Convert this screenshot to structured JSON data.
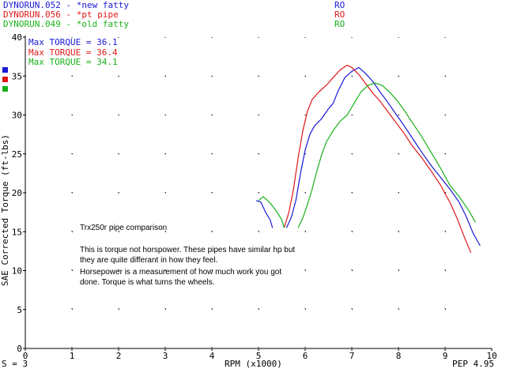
{
  "header": {
    "runs": [
      {
        "label": "DYNORUN.052 - *new fatty",
        "flag": "RO",
        "color": "#1a1ad6"
      },
      {
        "label": "DYNORUN.056 - *pt pipe",
        "flag": "RO",
        "color": "#e01818"
      },
      {
        "label": "DYNORUN.049 - *old fatty",
        "flag": "RO",
        "color": "#18b018"
      }
    ]
  },
  "max_torque": [
    {
      "text": "Max TORQUE = 36.1",
      "color": "#1a1ad6"
    },
    {
      "text": "Max TORQUE = 36.4",
      "color": "#e01818"
    },
    {
      "text": "Max TORQUE = 34.1",
      "color": "#18b018"
    }
  ],
  "note": {
    "title": "Trx250r pipe comparison",
    "line1": "This is torque not horspower. These pipes have similar hp but",
    "line2": "they are quite differant in how they feel.",
    "line3": "Horsepower is a measurement of how much work you got",
    "line4": "done. Torque is what turns the wheels."
  },
  "footer": {
    "left": "S = 3",
    "center": "RPM (x1000)",
    "right": "PEP 4.95"
  },
  "chart_data": {
    "type": "line",
    "xlabel": "RPM (x1000)",
    "ylabel": "SAE Corrected Torque (ft-lbs)",
    "xlim": [
      0,
      10
    ],
    "ylim": [
      0,
      40
    ],
    "x_ticks": [
      "0",
      "1",
      "2",
      "3",
      "4",
      "5",
      "6",
      "7",
      "8",
      "9",
      "10"
    ],
    "y_ticks": [
      "0",
      "5",
      "10",
      "15",
      "20",
      "25",
      "30",
      "35",
      "40"
    ],
    "grid": "dotted",
    "series": [
      {
        "name": "DYNORUN.052 - *new fatty",
        "color": "#1a1ad6",
        "segments": [
          [
            [
              4.95,
              19.0
            ],
            [
              5.05,
              18.8
            ],
            [
              5.15,
              17.5
            ],
            [
              5.25,
              16.5
            ],
            [
              5.3,
              15.5
            ]
          ],
          [
            [
              5.6,
              15.5
            ],
            [
              5.7,
              16.8
            ],
            [
              5.8,
              19.0
            ],
            [
              5.9,
              22.5
            ],
            [
              6.0,
              25.5
            ],
            [
              6.1,
              27.5
            ],
            [
              6.2,
              28.6
            ],
            [
              6.35,
              29.5
            ],
            [
              6.5,
              30.8
            ],
            [
              6.6,
              31.5
            ],
            [
              6.7,
              33.0
            ],
            [
              6.85,
              34.8
            ],
            [
              7.0,
              35.6
            ],
            [
              7.15,
              36.1
            ],
            [
              7.3,
              35.3
            ],
            [
              7.45,
              34.3
            ],
            [
              7.6,
              33.0
            ],
            [
              7.75,
              31.8
            ],
            [
              7.9,
              30.5
            ],
            [
              8.1,
              28.8
            ],
            [
              8.3,
              27.0
            ],
            [
              8.5,
              25.2
            ],
            [
              8.7,
              23.5
            ],
            [
              8.9,
              22.0
            ],
            [
              9.1,
              20.5
            ],
            [
              9.3,
              18.8
            ],
            [
              9.45,
              17.0
            ],
            [
              9.6,
              14.8
            ],
            [
              9.75,
              13.2
            ]
          ]
        ]
      },
      {
        "name": "DYNORUN.056 - *pt pipe",
        "color": "#e01818",
        "segments": [
          [
            [
              5.55,
              15.5
            ],
            [
              5.65,
              17.5
            ],
            [
              5.75,
              20.5
            ],
            [
              5.85,
              24.5
            ],
            [
              5.95,
              28.0
            ],
            [
              6.05,
              30.5
            ],
            [
              6.15,
              32.0
            ],
            [
              6.3,
              33.0
            ],
            [
              6.45,
              33.8
            ],
            [
              6.6,
              34.8
            ],
            [
              6.75,
              35.8
            ],
            [
              6.9,
              36.4
            ],
            [
              7.0,
              36.1
            ],
            [
              7.15,
              35.2
            ],
            [
              7.3,
              34.0
            ],
            [
              7.45,
              32.8
            ],
            [
              7.6,
              31.8
            ],
            [
              7.75,
              30.6
            ],
            [
              7.9,
              29.4
            ],
            [
              8.1,
              27.8
            ],
            [
              8.3,
              26.0
            ],
            [
              8.5,
              24.5
            ],
            [
              8.7,
              22.8
            ],
            [
              8.9,
              21.0
            ],
            [
              9.1,
              18.8
            ],
            [
              9.25,
              16.8
            ],
            [
              9.4,
              14.5
            ],
            [
              9.55,
              12.3
            ]
          ]
        ]
      },
      {
        "name": "DYNORUN.049 - *old fatty",
        "color": "#18b018",
        "segments": [
          [
            [
              5.0,
              19.0
            ],
            [
              5.1,
              19.5
            ],
            [
              5.2,
              19.0
            ],
            [
              5.3,
              18.3
            ],
            [
              5.4,
              17.5
            ],
            [
              5.5,
              16.5
            ],
            [
              5.55,
              15.5
            ]
          ],
          [
            [
              5.85,
              15.5
            ],
            [
              5.95,
              16.8
            ],
            [
              6.05,
              18.5
            ],
            [
              6.15,
              20.5
            ],
            [
              6.25,
              22.8
            ],
            [
              6.35,
              24.8
            ],
            [
              6.45,
              26.5
            ],
            [
              6.6,
              28.0
            ],
            [
              6.75,
              29.2
            ],
            [
              6.9,
              30.0
            ],
            [
              7.05,
              31.5
            ],
            [
              7.2,
              33.0
            ],
            [
              7.35,
              33.8
            ],
            [
              7.5,
              34.1
            ],
            [
              7.65,
              33.8
            ],
            [
              7.8,
              33.0
            ],
            [
              7.95,
              32.0
            ],
            [
              8.1,
              30.8
            ],
            [
              8.3,
              29.0
            ],
            [
              8.5,
              27.2
            ],
            [
              8.7,
              25.2
            ],
            [
              8.9,
              23.2
            ],
            [
              9.1,
              21.0
            ],
            [
              9.3,
              19.5
            ],
            [
              9.5,
              17.8
            ],
            [
              9.65,
              16.2
            ]
          ]
        ]
      }
    ]
  }
}
